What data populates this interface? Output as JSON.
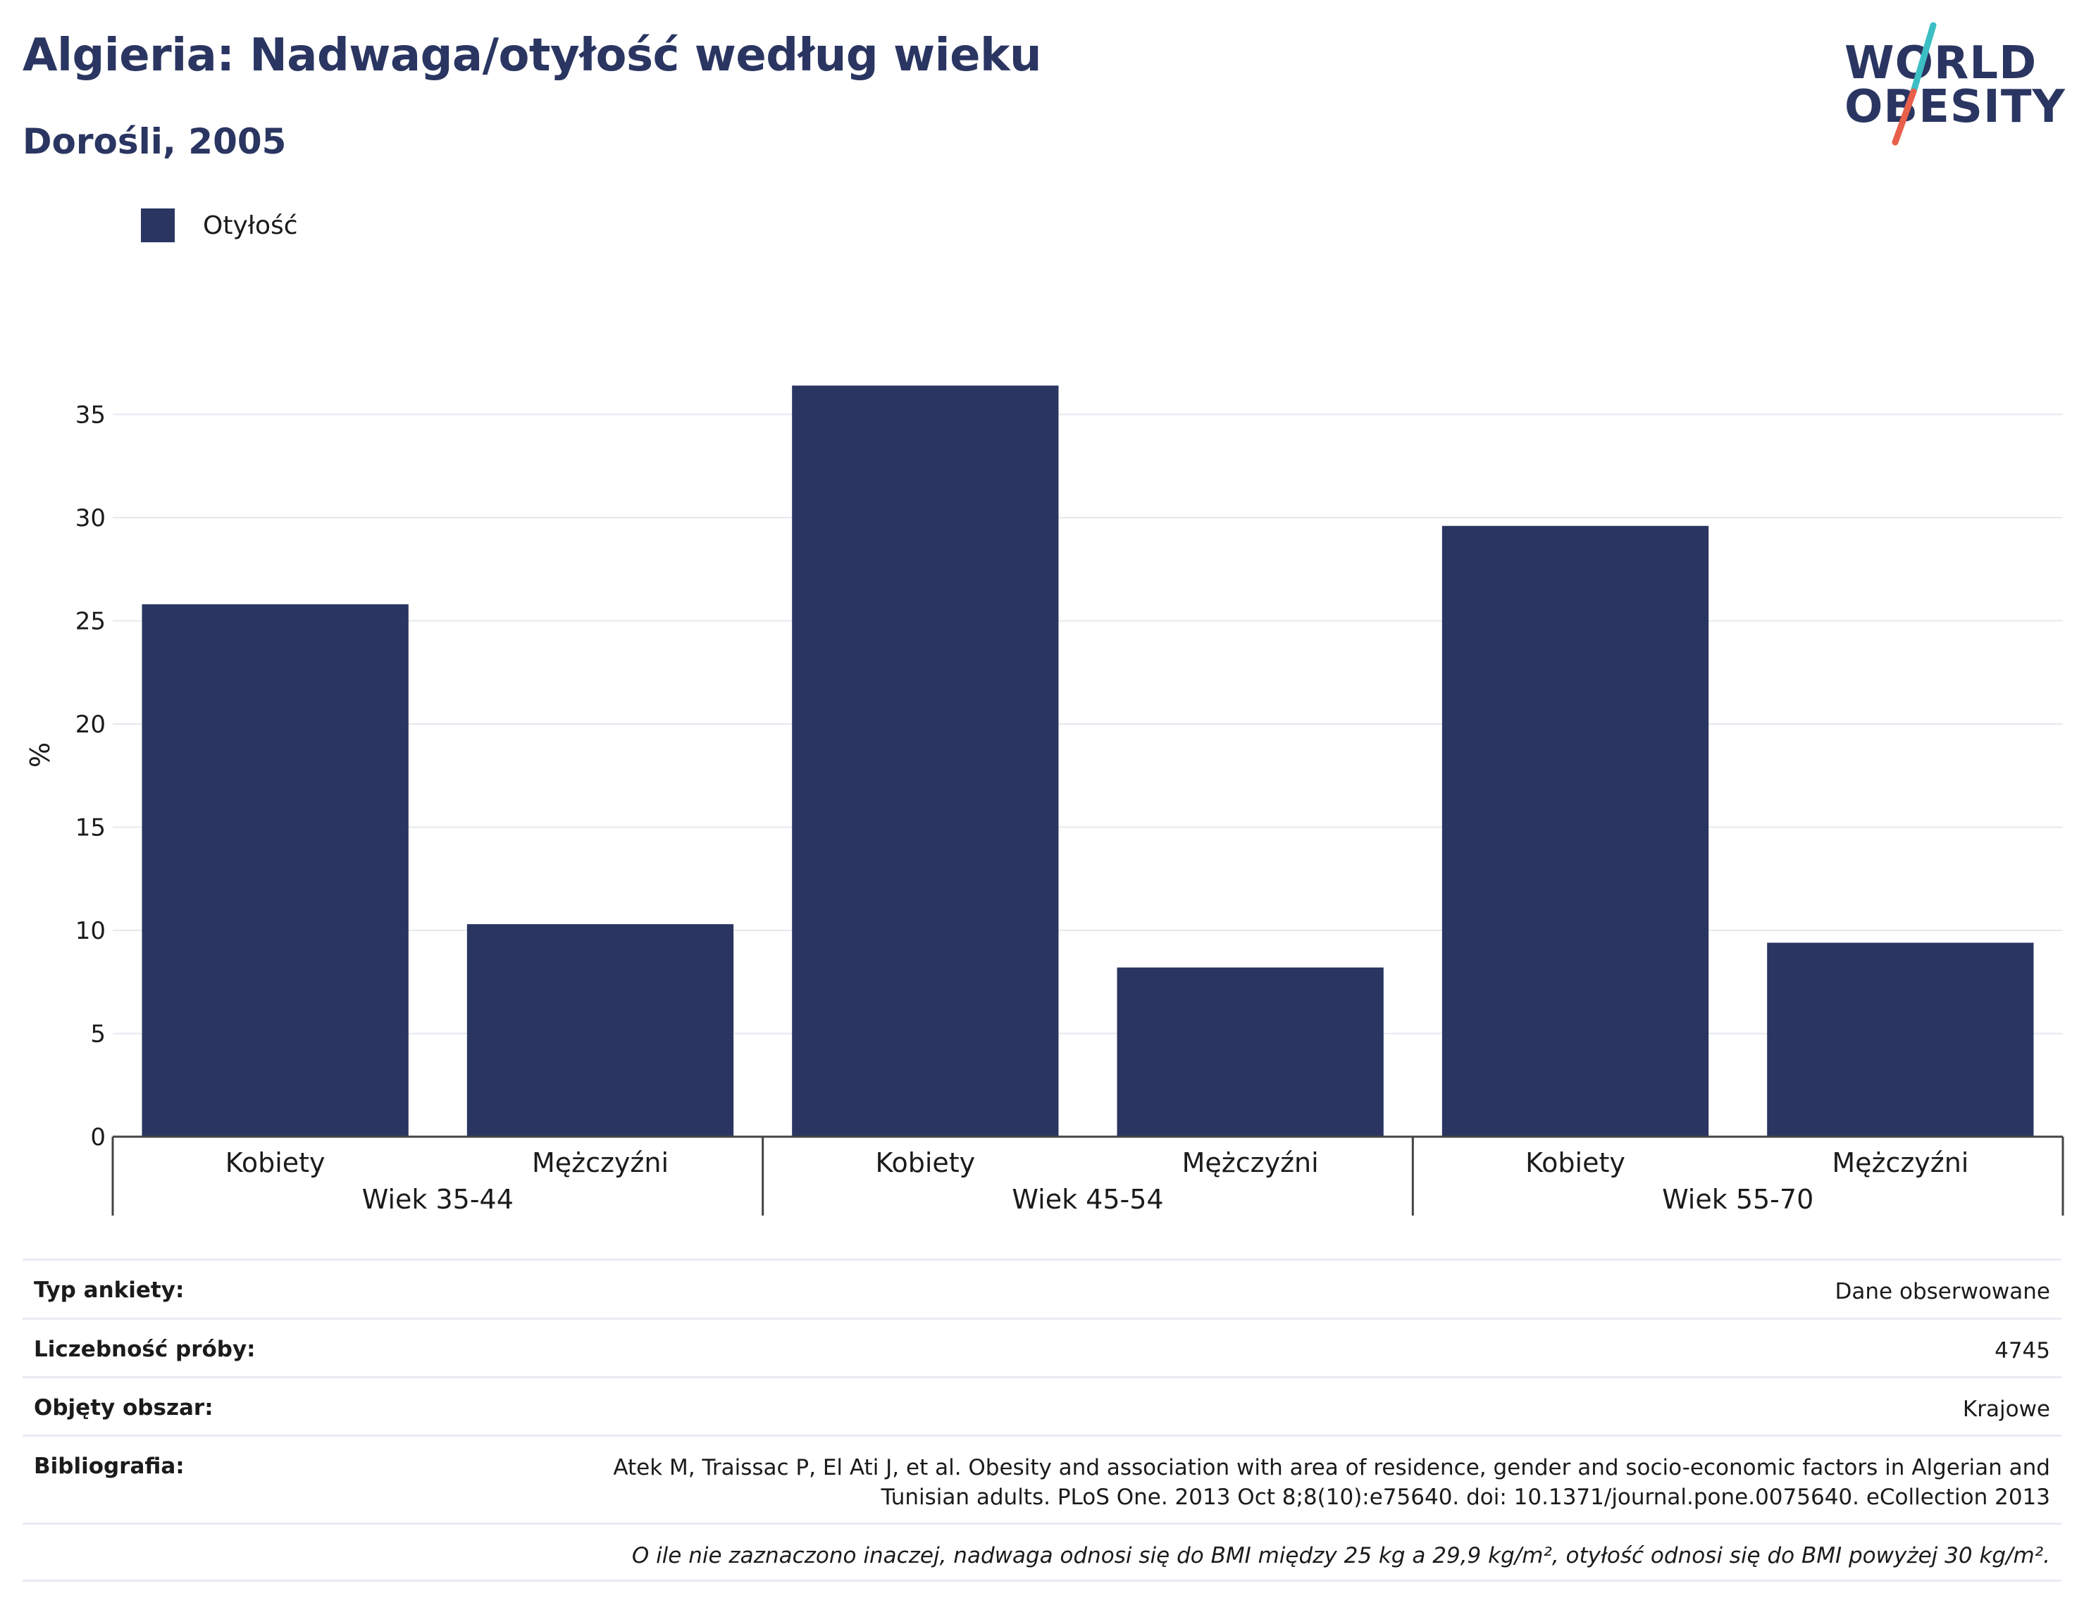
{
  "header": {
    "title": "Algieria: Nadwaga/otyłość według wieku",
    "subtitle": "Dorośli, 2005"
  },
  "logo": {
    "line1": "WORLD",
    "line2": "OBESITY",
    "accent_colors": [
      "#3bbfc4",
      "#e8604a"
    ]
  },
  "legend": {
    "items": [
      {
        "label": "Otyłość",
        "color": "#2a3561"
      }
    ]
  },
  "chart_data": {
    "type": "bar",
    "title": "Algieria: Nadwaga/otyłość według wieku",
    "subtitle": "Dorośli, 2005",
    "ylabel": "%",
    "xlabel": "",
    "ylim": [
      0,
      37
    ],
    "yticks": [
      0,
      5,
      10,
      15,
      20,
      25,
      30,
      35
    ],
    "grid": true,
    "legend_position": "top-left",
    "groups": [
      {
        "label": "Wiek 35-44",
        "categories": [
          "Kobiety",
          "Mężczyźni"
        ]
      },
      {
        "label": "Wiek 45-54",
        "categories": [
          "Kobiety",
          "Mężczyźni"
        ]
      },
      {
        "label": "Wiek 55-70",
        "categories": [
          "Kobiety",
          "Mężczyźni"
        ]
      }
    ],
    "categories": [
      "Kobiety",
      "Mężczyźni",
      "Kobiety",
      "Mężczyźni",
      "Kobiety",
      "Mężczyźni"
    ],
    "series": [
      {
        "name": "Otyłość",
        "color": "#2a3561",
        "values": [
          25.8,
          10.3,
          36.4,
          8.2,
          29.6,
          9.4
        ]
      }
    ]
  },
  "info": {
    "survey_type_label": "Typ ankiety:",
    "survey_type_value": "Dane obserwowane",
    "sample_size_label": "Liczebność próby:",
    "sample_size_value": "4745",
    "area_label": "Objęty obszar:",
    "area_value": "Krajowe",
    "bibliography_label": "Bibliografia:",
    "bibliography_line1": "Atek M, Traissac P, El Ati J, et al. Obesity and association with area of residence, gender and socio-economic factors in Algerian and",
    "bibliography_line2": "Tunisian adults. PLoS One. 2013 Oct 8;8(10):e75640. doi: 10.1371/journal.pone.0075640. eCollection 2013",
    "footnote": "O ile nie zaznaczono inaczej, nadwaga odnosi się do BMI między 25 kg a 29,9 kg/m², otyłość odnosi się do BMI powyżej 30 kg/m²."
  }
}
